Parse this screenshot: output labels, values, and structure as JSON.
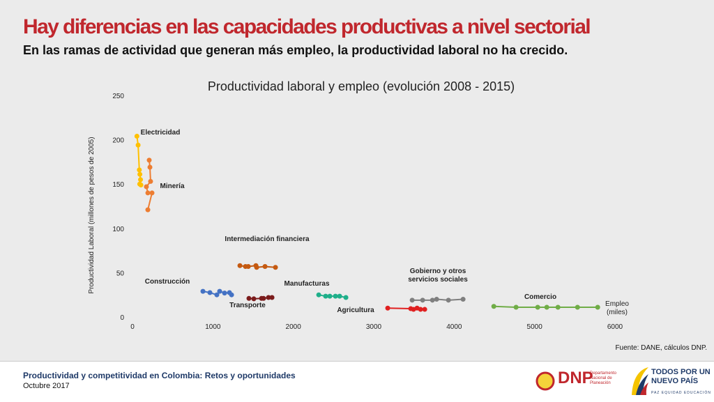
{
  "header": {
    "title": "Hay diferencias en las capacidades productivas a nivel sectorial",
    "subtitle": "En las ramas de actividad que generan más empleo, la productividad laboral no ha crecido."
  },
  "chart_data": {
    "type": "line",
    "title": "Productividad laboral y empleo (evolución 2008 - 2015)",
    "x_label": "Empleo (miles)",
    "y_label": "Productividad Laboral (millones de pesos de 2005)",
    "xlim": [
      0,
      6000
    ],
    "xticks": [
      0,
      1000,
      2000,
      3000,
      4000,
      5000,
      6000
    ],
    "ylim": [
      0,
      250
    ],
    "yticks": [
      0,
      50,
      100,
      150,
      200,
      250
    ],
    "series": [
      {
        "name": "Electricidad",
        "color": "#FFC000",
        "x": [
          55,
          70,
          85,
          92,
          100,
          90,
          105
        ],
        "values": [
          204,
          194,
          166,
          161,
          155,
          150,
          149
        ]
      },
      {
        "name": "Minería",
        "color": "#ED7D31",
        "x": [
          208,
          217,
          225,
          173,
          191,
          243,
          191
        ],
        "values": [
          177,
          169,
          153,
          147,
          140,
          140,
          121
        ]
      },
      {
        "name": "Intermediación financiera",
        "color": "#C55A11",
        "x": [
          1336,
          1405,
          1440,
          1535,
          1544,
          1648,
          1778
        ],
        "values": [
          58,
          57,
          57,
          58,
          56,
          57,
          56
        ]
      },
      {
        "name": "Construcción",
        "color": "#4472C4",
        "x": [
          876,
          963,
          1049,
          1084,
          1145,
          1206,
          1232
        ],
        "values": [
          29,
          27.5,
          25,
          29,
          27,
          27.5,
          25
        ]
      },
      {
        "name": "Transporte",
        "color": "#7B1C1C",
        "x": [
          1448,
          1509,
          1604,
          1630,
          1691,
          1735
        ],
        "values": [
          21,
          20.5,
          21,
          21,
          22,
          22
        ]
      },
      {
        "name": "Manufacturas",
        "color": "#1FAF8A",
        "x": [
          2316,
          2402,
          2454,
          2524,
          2576,
          2654
        ],
        "values": [
          25,
          23.5,
          23.5,
          23.5,
          23.5,
          22
        ]
      },
      {
        "name": "Agricultura",
        "color": "#E02020",
        "x": [
          3174,
          3460,
          3495,
          3539,
          3582,
          3634
        ],
        "values": [
          10,
          9.4,
          8.6,
          10,
          8.6,
          8.6
        ]
      },
      {
        "name": "Gobierno y otros servicios sociales",
        "color": "#7F7F7F",
        "x": [
          3478,
          3608,
          3730,
          3782,
          3929,
          4111
        ],
        "values": [
          19,
          19,
          19,
          20,
          19,
          20
        ]
      },
      {
        "name": "Comercio",
        "color": "#70AD47",
        "x": [
          4493,
          4770,
          5039,
          5152,
          5291,
          5534,
          5785
        ],
        "values": [
          12,
          11,
          11,
          11,
          11,
          11,
          11
        ]
      }
    ],
    "source": "Fuente: DANE, cálculos DNP."
  },
  "footer": {
    "title": "Productividad y competitividad en Colombia: Retos y oportunidades",
    "date": "Octubre 2017",
    "logo_dnp": "DNP",
    "logo_dnp_text": "Departamento Nacional de Planeación",
    "logo_gov": "TODOS POR UN NUEVO PAÍS",
    "logo_gov_tagline": "PAZ EQUIDAD EDUCACIÓN"
  }
}
